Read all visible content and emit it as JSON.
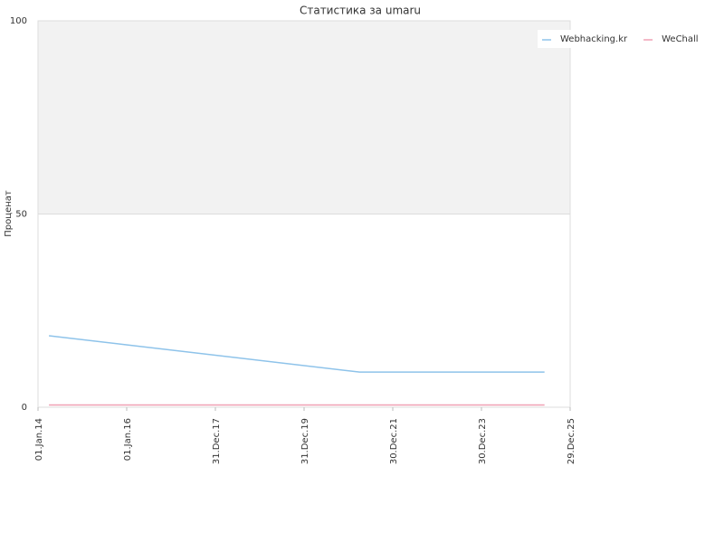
{
  "chart_data": {
    "type": "line",
    "title": "Статистика за umaru",
    "y_label": "Проценат",
    "series": [
      {
        "name": "Webhacking.kr",
        "color": "#8ec3ea",
        "x": [
          "2014-04-01",
          "2021-04-01",
          "2025-06-01"
        ],
        "values": [
          18.5,
          9.1,
          9.1
        ]
      },
      {
        "name": "WeChall",
        "color": "#f0a0b4",
        "x": [
          "2014-04-01",
          "2025-06-01"
        ],
        "values": [
          0.6,
          0.6
        ]
      }
    ],
    "xlim": [
      "2014-01-01",
      "2025-12-29"
    ],
    "xticks": [
      {
        "value": "2014-01-01",
        "label": "01.Jan.14"
      },
      {
        "value": "2016-01-01",
        "label": "01.Jan.16"
      },
      {
        "value": "2017-12-31",
        "label": "31.Dec.17"
      },
      {
        "value": "2019-12-31",
        "label": "31.Dec.19"
      },
      {
        "value": "2021-12-30",
        "label": "30.Dec.21"
      },
      {
        "value": "2023-12-30",
        "label": "30.Dec.23"
      },
      {
        "value": "2025-12-29",
        "label": "29.Dec.25"
      }
    ],
    "ylim": [
      0,
      100
    ],
    "yticks": [
      0,
      50,
      100
    ],
    "grid": true,
    "legend": "top-right"
  }
}
